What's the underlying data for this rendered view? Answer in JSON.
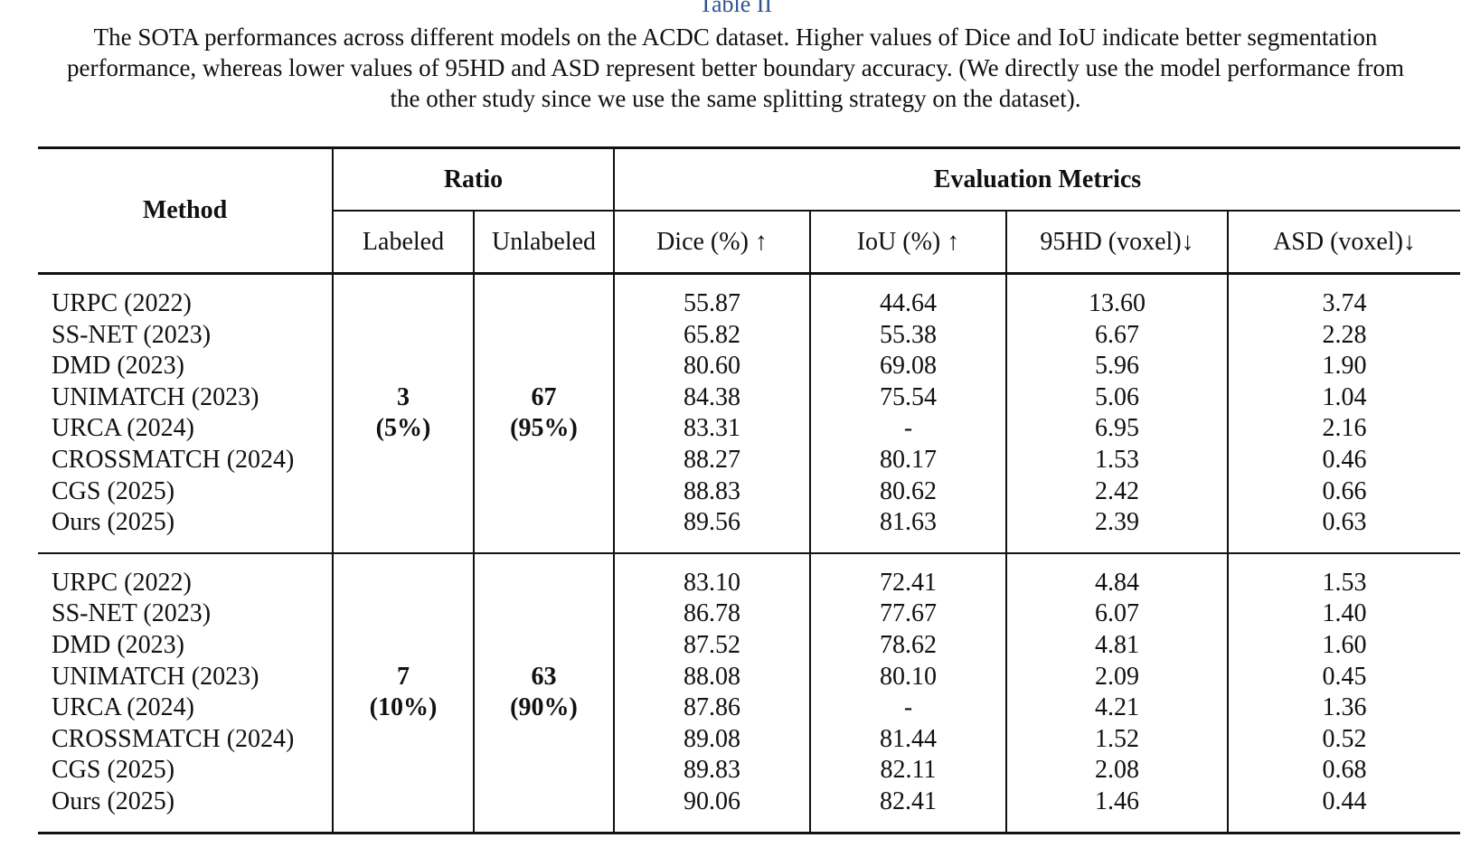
{
  "caption": {
    "label": "Table II",
    "text": "The SOTA performances across different models on the ACDC dataset. Higher values of Dice and IoU indicate better segmentation performance, whereas lower values of 95HD and ASD represent better boundary accuracy. (We directly use the model performance from the other study since we use the same splitting strategy on the dataset)."
  },
  "table": {
    "header": {
      "method": "Method",
      "ratio": "Ratio",
      "metrics": "Evaluation Metrics",
      "columns": [
        "Labeled",
        "Unlabeled",
        "Dice (%) ↑",
        "IoU (%) ↑",
        "95HD (voxel)↓",
        "ASD (voxel)↓"
      ]
    },
    "groups": [
      {
        "labeled": [
          "3",
          "(5%)"
        ],
        "unlabeled": [
          "67",
          "(95%)"
        ],
        "rows": [
          [
            "URPC (2022)",
            "55.87",
            "44.64",
            "13.60",
            "3.74"
          ],
          [
            "SS-NET (2023)",
            "65.82",
            "55.38",
            "6.67",
            "2.28"
          ],
          [
            "DMD (2023)",
            "80.60",
            "69.08",
            "5.96",
            "1.90"
          ],
          [
            "UNIMATCH (2023)",
            "84.38",
            "75.54",
            "5.06",
            "1.04"
          ],
          [
            "URCA (2024)",
            "83.31",
            "-",
            "6.95",
            "2.16"
          ],
          [
            "CROSSMATCH (2024)",
            "88.27",
            "80.17",
            "1.53",
            "0.46"
          ],
          [
            "CGS (2025)",
            "88.83",
            "80.62",
            "2.42",
            "0.66"
          ],
          [
            "Ours (2025)",
            "89.56",
            "81.63",
            "2.39",
            "0.63"
          ]
        ]
      },
      {
        "labeled": [
          "7",
          "(10%)"
        ],
        "unlabeled": [
          "63",
          "(90%)"
        ],
        "rows": [
          [
            "URPC (2022)",
            "83.10",
            "72.41",
            "4.84",
            "1.53"
          ],
          [
            "SS-NET (2023)",
            "86.78",
            "77.67",
            "6.07",
            "1.40"
          ],
          [
            "DMD (2023)",
            "87.52",
            "78.62",
            "4.81",
            "1.60"
          ],
          [
            "UNIMATCH (2023)",
            "88.08",
            "80.10",
            "2.09",
            "0.45"
          ],
          [
            "URCA (2024)",
            "87.86",
            "-",
            "4.21",
            "1.36"
          ],
          [
            "CROSSMATCH (2024)",
            "89.08",
            "81.44",
            "1.52",
            "0.52"
          ],
          [
            "CGS (2025)",
            "89.83",
            "82.11",
            "2.08",
            "0.68"
          ],
          [
            "Ours (2025)",
            "90.06",
            "82.41",
            "1.46",
            "0.44"
          ]
        ]
      }
    ]
  }
}
